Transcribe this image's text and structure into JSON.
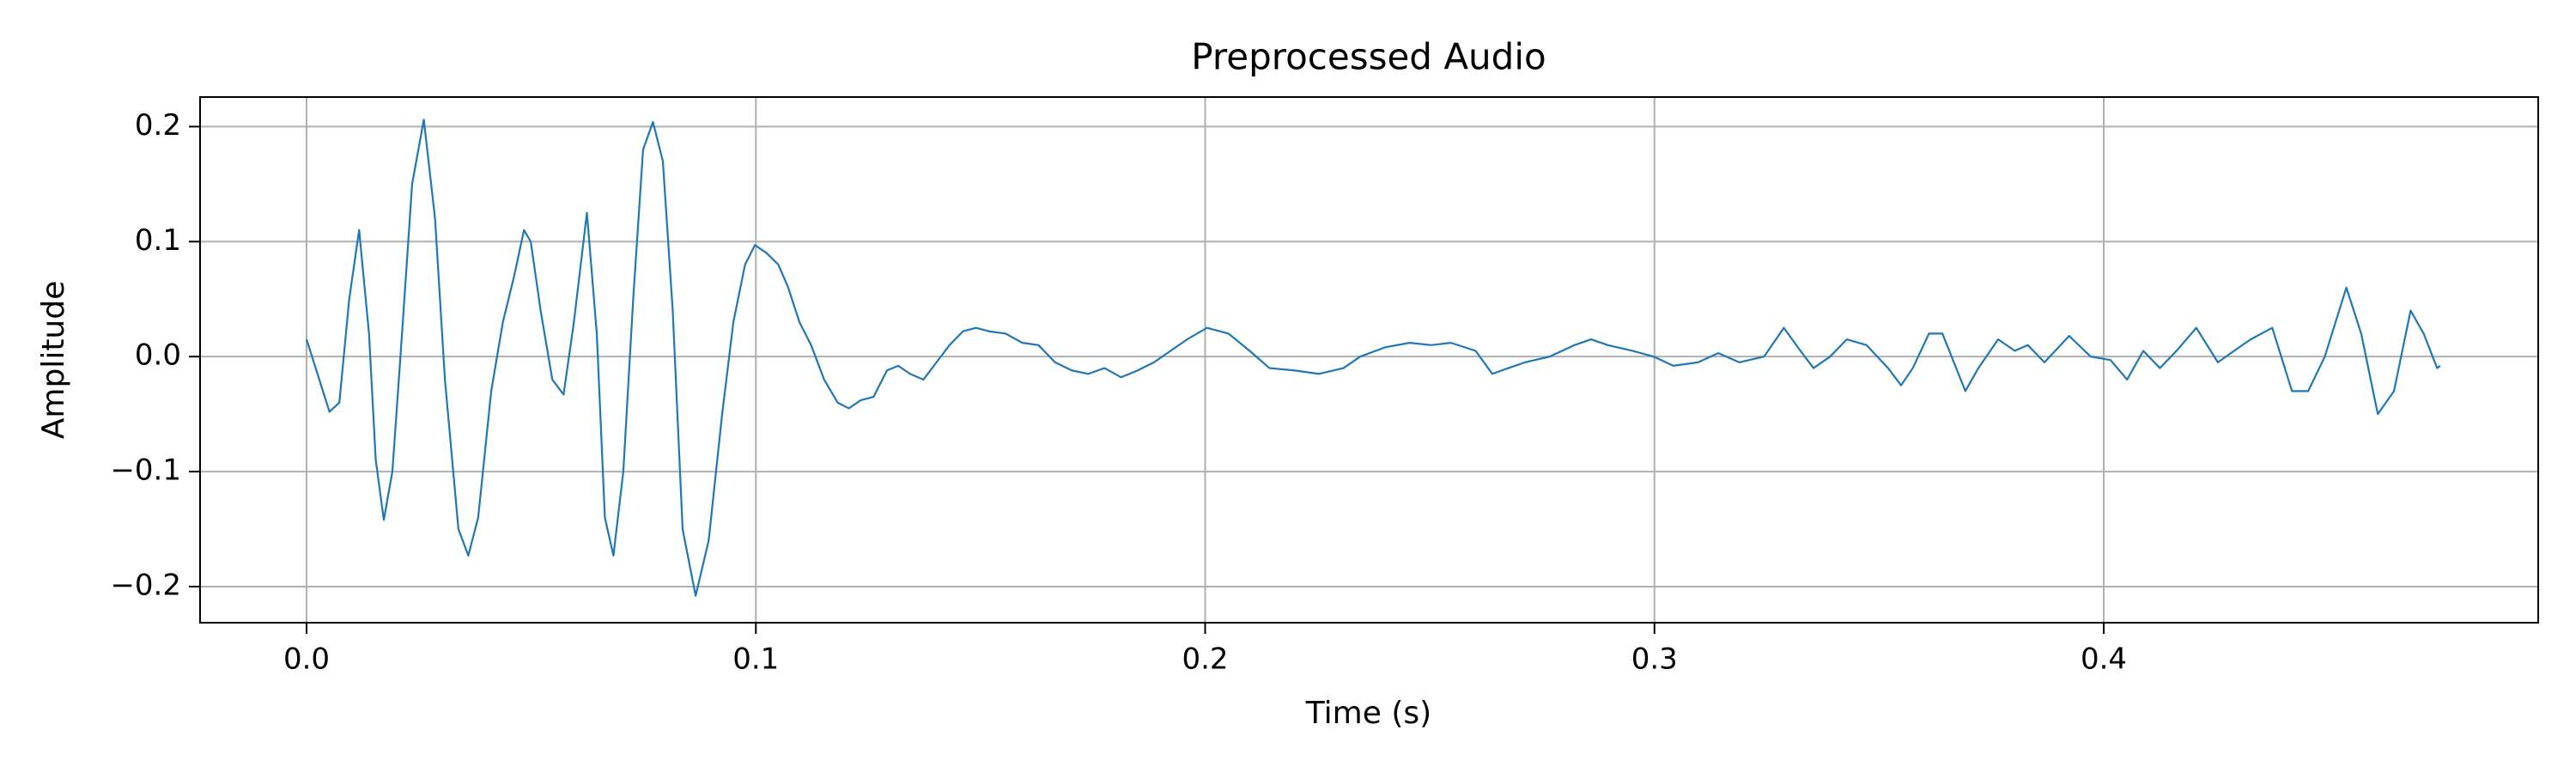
{
  "chart_data": {
    "type": "line",
    "title": "Preprocessed Audio",
    "xlabel": "Time (s)",
    "ylabel": "Amplitude",
    "color": "#1f77b4",
    "grid": true,
    "xlim": [
      -0.0237,
      0.4967
    ],
    "ylim": [
      -0.2314,
      0.2257
    ],
    "xticks": [
      {
        "value": 0,
        "label": "0.0"
      },
      0.1,
      0.2,
      0.3,
      0.4
    ],
    "yticks": [
      {
        "value": -0.2,
        "label": "−0.2"
      },
      {
        "value": -0.1,
        "label": "−0.1"
      },
      {
        "value": 0,
        "label": "0.0"
      },
      0.1,
      0.2
    ],
    "x": [
      0,
      0.0051,
      0.0073,
      0.0095,
      0.0117,
      0.0139,
      0.0154,
      0.0172,
      0.0191,
      0.0209,
      0.0235,
      0.0261,
      0.0286,
      0.0308,
      0.0338,
      0.036,
      0.0382,
      0.0411,
      0.0437,
      0.0462,
      0.0484,
      0.0499,
      0.0521,
      0.0547,
      0.0572,
      0.0595,
      0.0624,
      0.0646,
      0.0664,
      0.0683,
      0.0705,
      0.0727,
      0.0749,
      0.0771,
      0.0793,
      0.0815,
      0.0837,
      0.0866,
      0.0895,
      0.0925,
      0.095,
      0.0976,
      0.0998,
      0.1024,
      0.105,
      0.1072,
      0.1097,
      0.1123,
      0.1152,
      0.1182,
      0.1207,
      0.1233,
      0.1262,
      0.1292,
      0.1317,
      0.1343,
      0.1373,
      0.1402,
      0.1431,
      0.1461,
      0.149,
      0.1519,
      0.1556,
      0.1593,
      0.1629,
      0.1666,
      0.1703,
      0.174,
      0.1776,
      0.1813,
      0.185,
      0.1886,
      0.1923,
      0.196,
      0.2004,
      0.2052,
      0.2099,
      0.2143,
      0.2198,
      0.2253,
      0.2308,
      0.2345,
      0.24,
      0.2455,
      0.2503,
      0.2547,
      0.2602,
      0.2639,
      0.2675,
      0.2712,
      0.2767,
      0.2822,
      0.2859,
      0.2896,
      0.2951,
      0.2998,
      0.3042,
      0.3097,
      0.3142,
      0.3189,
      0.3244,
      0.3288,
      0.3325,
      0.3354,
      0.3391,
      0.3428,
      0.3472,
      0.352,
      0.3549,
      0.3575,
      0.3611,
      0.3641,
      0.3692,
      0.3721,
      0.3765,
      0.3802,
      0.3831,
      0.3868,
      0.3923,
      0.3971,
      0.4015,
      0.4052,
      0.4088,
      0.4125,
      0.4162,
      0.4206,
      0.4254,
      0.429,
      0.4327,
      0.4375,
      0.4419,
      0.4455,
      0.4492,
      0.454,
      0.4573,
      0.461,
      0.4646,
      0.4683,
      0.4712,
      0.4742,
      0.4749
    ],
    "values": [
      0.015,
      -0.048,
      -0.04,
      0.05,
      0.11,
      0.02,
      -0.09,
      -0.142,
      -0.1,
      0.0,
      0.15,
      0.206,
      0.12,
      -0.02,
      -0.15,
      -0.173,
      -0.14,
      -0.03,
      0.03,
      0.07,
      0.11,
      0.1,
      0.04,
      -0.02,
      -0.033,
      0.03,
      0.125,
      0.02,
      -0.14,
      -0.173,
      -0.1,
      0.05,
      0.18,
      0.204,
      0.17,
      0.04,
      -0.15,
      -0.208,
      -0.16,
      -0.05,
      0.03,
      0.08,
      0.097,
      0.09,
      0.08,
      0.06,
      0.03,
      0.01,
      -0.02,
      -0.04,
      -0.045,
      -0.038,
      -0.035,
      -0.012,
      -0.008,
      -0.015,
      -0.02,
      -0.005,
      0.01,
      0.022,
      0.025,
      0.022,
      0.02,
      0.012,
      0.01,
      -0.005,
      -0.012,
      -0.015,
      -0.01,
      -0.018,
      -0.012,
      -0.005,
      0.005,
      0.015,
      0.025,
      0.02,
      0.005,
      -0.01,
      -0.012,
      -0.015,
      -0.01,
      0.0,
      0.008,
      0.012,
      0.01,
      0.012,
      0.005,
      -0.015,
      -0.01,
      -0.005,
      0.0,
      0.01,
      0.015,
      0.01,
      0.005,
      0.0,
      -0.008,
      -0.005,
      0.003,
      -0.005,
      0.0,
      0.025,
      0.005,
      -0.01,
      0.0,
      0.015,
      0.01,
      -0.01,
      -0.025,
      -0.01,
      0.02,
      0.02,
      -0.03,
      -0.01,
      0.015,
      0.005,
      0.01,
      -0.005,
      0.018,
      0.0,
      -0.003,
      -0.02,
      0.005,
      -0.01,
      0.005,
      0.025,
      -0.005,
      0.005,
      0.015,
      0.025,
      -0.03,
      -0.03,
      0.0,
      0.06,
      0.02,
      -0.05,
      -0.03,
      0.04,
      0.02,
      -0.01,
      -0.008
    ]
  }
}
